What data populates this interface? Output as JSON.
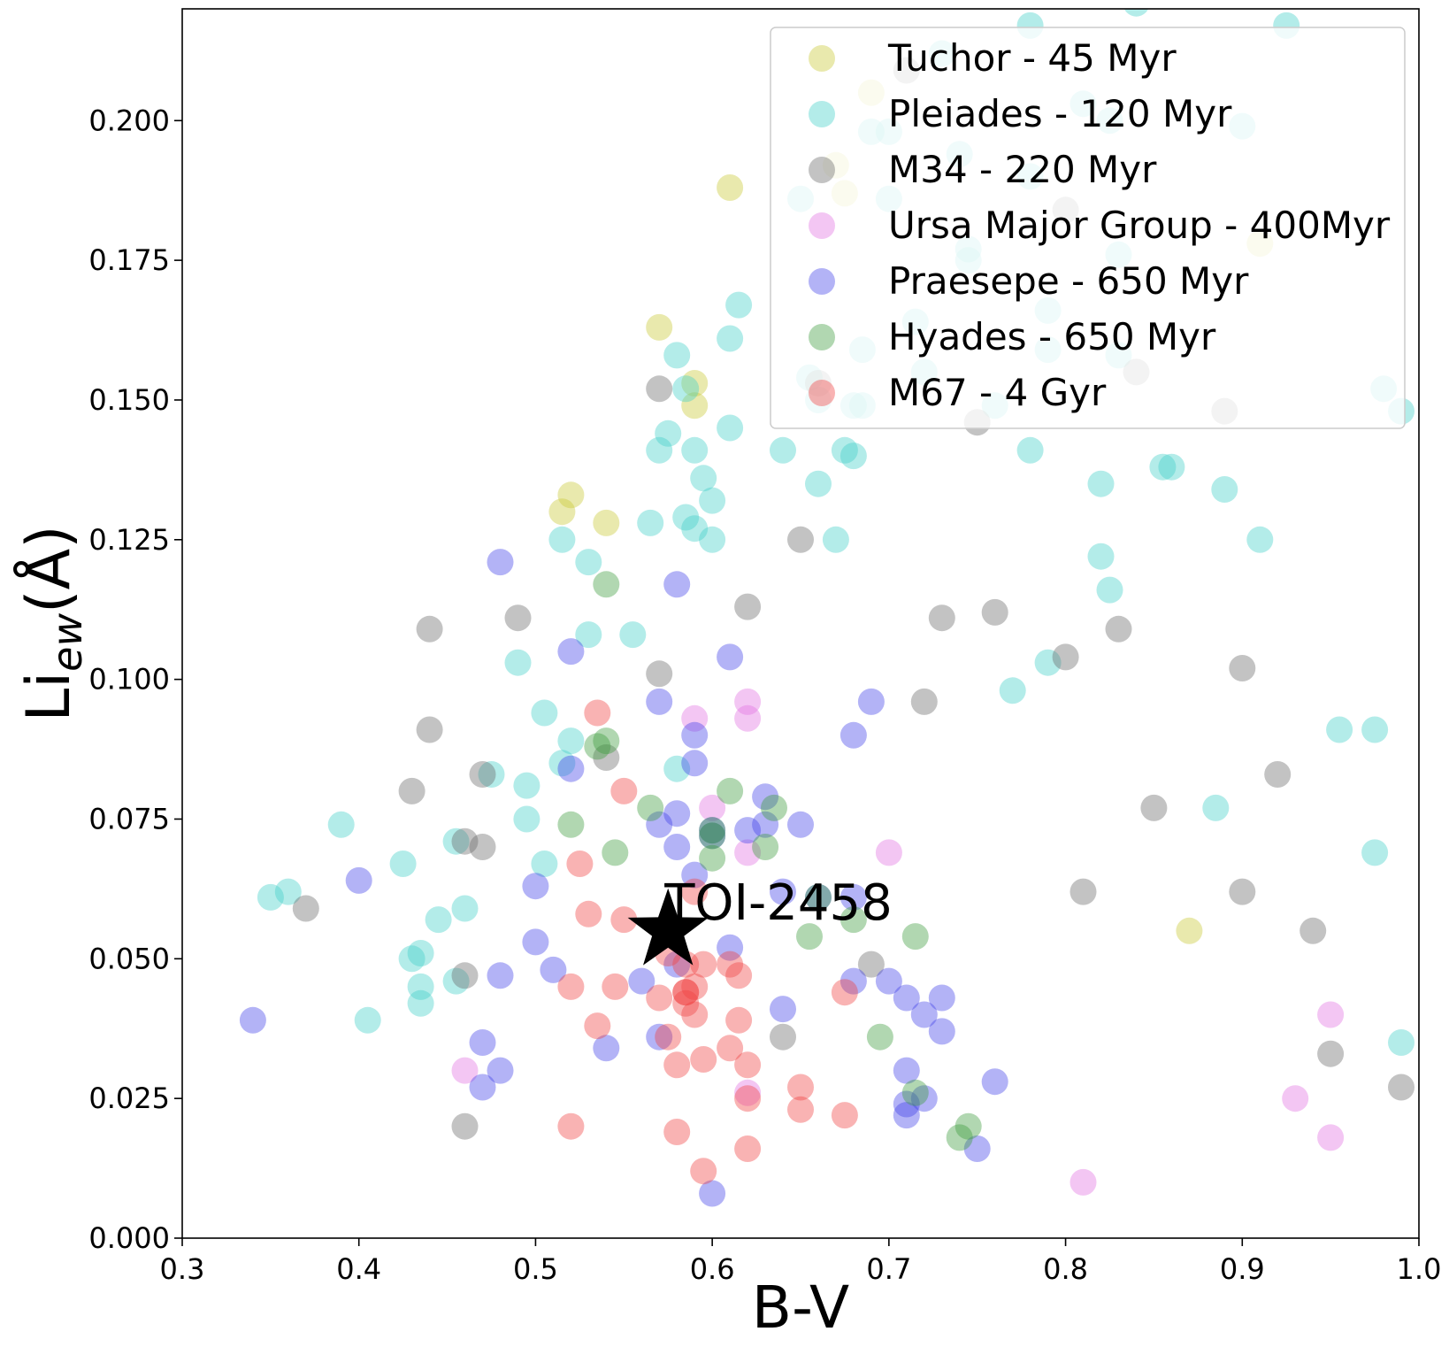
{
  "chart_data": {
    "type": "scatter",
    "title": "",
    "xlabel": "B-V",
    "ylabel_main": "Li",
    "ylabel_sub": "ew",
    "ylabel_unit": "(Å)",
    "xlim": [
      0.3,
      1.0
    ],
    "ylim": [
      0.0,
      0.22
    ],
    "x_ticks": [
      "0.3",
      "0.4",
      "0.5",
      "0.6",
      "0.7",
      "0.8",
      "0.9",
      "1.0"
    ],
    "y_ticks": [
      "0.000",
      "0.025",
      "0.050",
      "0.075",
      "0.100",
      "0.125",
      "0.150",
      "0.175",
      "0.200"
    ],
    "grid": false,
    "legend_position": "top-right",
    "annotation": {
      "text": "TOI-2458",
      "x": 0.575,
      "y": 0.055,
      "marker": "star",
      "color": "#000000"
    },
    "series": [
      {
        "name": "Tuchor - 45 Myr",
        "color": "#c8c832",
        "points": [
          [
            0.515,
            0.13
          ],
          [
            0.52,
            0.133
          ],
          [
            0.54,
            0.128
          ],
          [
            0.57,
            0.163
          ],
          [
            0.59,
            0.153
          ],
          [
            0.59,
            0.149
          ],
          [
            0.61,
            0.188
          ],
          [
            0.67,
            0.192
          ],
          [
            0.675,
            0.187
          ],
          [
            0.69,
            0.205
          ],
          [
            0.87,
            0.055
          ],
          [
            0.91,
            0.178
          ]
        ]
      },
      {
        "name": "Pleiades - 120 Myr",
        "color": "#40d0c8",
        "points": [
          [
            0.35,
            0.061
          ],
          [
            0.36,
            0.062
          ],
          [
            0.39,
            0.074
          ],
          [
            0.405,
            0.039
          ],
          [
            0.425,
            0.067
          ],
          [
            0.43,
            0.05
          ],
          [
            0.435,
            0.045
          ],
          [
            0.435,
            0.051
          ],
          [
            0.435,
            0.042
          ],
          [
            0.445,
            0.057
          ],
          [
            0.455,
            0.046
          ],
          [
            0.455,
            0.071
          ],
          [
            0.46,
            0.059
          ],
          [
            0.475,
            0.083
          ],
          [
            0.49,
            0.103
          ],
          [
            0.495,
            0.081
          ],
          [
            0.495,
            0.075
          ],
          [
            0.505,
            0.094
          ],
          [
            0.505,
            0.067
          ],
          [
            0.515,
            0.085
          ],
          [
            0.52,
            0.089
          ],
          [
            0.515,
            0.125
          ],
          [
            0.53,
            0.121
          ],
          [
            0.53,
            0.108
          ],
          [
            0.555,
            0.108
          ],
          [
            0.565,
            0.128
          ],
          [
            0.57,
            0.141
          ],
          [
            0.575,
            0.144
          ],
          [
            0.58,
            0.158
          ],
          [
            0.58,
            0.084
          ],
          [
            0.585,
            0.129
          ],
          [
            0.585,
            0.152
          ],
          [
            0.59,
            0.141
          ],
          [
            0.59,
            0.127
          ],
          [
            0.595,
            0.136
          ],
          [
            0.6,
            0.125
          ],
          [
            0.6,
            0.132
          ],
          [
            0.61,
            0.161
          ],
          [
            0.61,
            0.145
          ],
          [
            0.615,
            0.167
          ],
          [
            0.64,
            0.141
          ],
          [
            0.65,
            0.186
          ],
          [
            0.655,
            0.154
          ],
          [
            0.66,
            0.135
          ],
          [
            0.66,
            0.15
          ],
          [
            0.67,
            0.125
          ],
          [
            0.675,
            0.141
          ],
          [
            0.68,
            0.14
          ],
          [
            0.68,
            0.149
          ],
          [
            0.685,
            0.159
          ],
          [
            0.685,
            0.149
          ],
          [
            0.69,
            0.198
          ],
          [
            0.7,
            0.186
          ],
          [
            0.7,
            0.198
          ],
          [
            0.715,
            0.164
          ],
          [
            0.72,
            0.155
          ],
          [
            0.73,
            0.212
          ],
          [
            0.74,
            0.194
          ],
          [
            0.745,
            0.177
          ],
          [
            0.745,
            0.175
          ],
          [
            0.76,
            0.149
          ],
          [
            0.77,
            0.098
          ],
          [
            0.78,
            0.141
          ],
          [
            0.78,
            0.19
          ],
          [
            0.78,
            0.217
          ],
          [
            0.79,
            0.166
          ],
          [
            0.79,
            0.159
          ],
          [
            0.79,
            0.103
          ],
          [
            0.81,
            0.203
          ],
          [
            0.82,
            0.135
          ],
          [
            0.82,
            0.122
          ],
          [
            0.825,
            0.116
          ],
          [
            0.825,
            0.2
          ],
          [
            0.83,
            0.176
          ],
          [
            0.83,
            0.158
          ],
          [
            0.84,
            0.221
          ],
          [
            0.855,
            0.138
          ],
          [
            0.86,
            0.138
          ],
          [
            0.885,
            0.077
          ],
          [
            0.89,
            0.134
          ],
          [
            0.9,
            0.199
          ],
          [
            0.91,
            0.125
          ],
          [
            0.925,
            0.217
          ],
          [
            0.955,
            0.091
          ],
          [
            0.975,
            0.091
          ],
          [
            0.975,
            0.069
          ],
          [
            0.98,
            0.152
          ],
          [
            0.99,
            0.148
          ],
          [
            0.99,
            0.035
          ]
        ]
      },
      {
        "name": "M34 - 220 Myr",
        "color": "#6a6a6a",
        "points": [
          [
            0.37,
            0.059
          ],
          [
            0.43,
            0.08
          ],
          [
            0.44,
            0.109
          ],
          [
            0.44,
            0.091
          ],
          [
            0.46,
            0.071
          ],
          [
            0.46,
            0.047
          ],
          [
            0.46,
            0.02
          ],
          [
            0.47,
            0.07
          ],
          [
            0.47,
            0.083
          ],
          [
            0.49,
            0.111
          ],
          [
            0.54,
            0.086
          ],
          [
            0.57,
            0.152
          ],
          [
            0.57,
            0.101
          ],
          [
            0.62,
            0.113
          ],
          [
            0.64,
            0.036
          ],
          [
            0.65,
            0.125
          ],
          [
            0.66,
            0.153
          ],
          [
            0.69,
            0.049
          ],
          [
            0.71,
            0.209
          ],
          [
            0.72,
            0.096
          ],
          [
            0.73,
            0.111
          ],
          [
            0.75,
            0.146
          ],
          [
            0.76,
            0.112
          ],
          [
            0.8,
            0.104
          ],
          [
            0.8,
            0.184
          ],
          [
            0.81,
            0.062
          ],
          [
            0.83,
            0.109
          ],
          [
            0.84,
            0.155
          ],
          [
            0.85,
            0.077
          ],
          [
            0.89,
            0.148
          ],
          [
            0.9,
            0.102
          ],
          [
            0.9,
            0.062
          ],
          [
            0.92,
            0.083
          ],
          [
            0.94,
            0.055
          ],
          [
            0.95,
            0.033
          ],
          [
            0.99,
            0.027
          ]
        ]
      },
      {
        "name": "Ursa Major Group - 400Myr",
        "color": "#e070e0",
        "points": [
          [
            0.46,
            0.03
          ],
          [
            0.59,
            0.093
          ],
          [
            0.6,
            0.077
          ],
          [
            0.62,
            0.096
          ],
          [
            0.62,
            0.093
          ],
          [
            0.62,
            0.069
          ],
          [
            0.62,
            0.026
          ],
          [
            0.7,
            0.069
          ],
          [
            0.81,
            0.01
          ],
          [
            0.93,
            0.025
          ],
          [
            0.95,
            0.04
          ],
          [
            0.95,
            0.018
          ]
        ]
      },
      {
        "name": "Praesepe - 650 Myr",
        "color": "#4040e8",
        "points": [
          [
            0.34,
            0.039
          ],
          [
            0.4,
            0.064
          ],
          [
            0.47,
            0.035
          ],
          [
            0.47,
            0.027
          ],
          [
            0.48,
            0.121
          ],
          [
            0.48,
            0.047
          ],
          [
            0.48,
            0.03
          ],
          [
            0.5,
            0.063
          ],
          [
            0.5,
            0.053
          ],
          [
            0.51,
            0.048
          ],
          [
            0.52,
            0.105
          ],
          [
            0.52,
            0.084
          ],
          [
            0.54,
            0.034
          ],
          [
            0.56,
            0.046
          ],
          [
            0.57,
            0.096
          ],
          [
            0.57,
            0.074
          ],
          [
            0.57,
            0.036
          ],
          [
            0.58,
            0.117
          ],
          [
            0.58,
            0.076
          ],
          [
            0.58,
            0.07
          ],
          [
            0.58,
            0.049
          ],
          [
            0.59,
            0.09
          ],
          [
            0.59,
            0.085
          ],
          [
            0.59,
            0.065
          ],
          [
            0.6,
            0.072
          ],
          [
            0.6,
            0.073
          ],
          [
            0.6,
            0.008
          ],
          [
            0.61,
            0.104
          ],
          [
            0.61,
            0.052
          ],
          [
            0.62,
            0.073
          ],
          [
            0.63,
            0.079
          ],
          [
            0.63,
            0.074
          ],
          [
            0.64,
            0.062
          ],
          [
            0.64,
            0.041
          ],
          [
            0.65,
            0.074
          ],
          [
            0.66,
            0.061
          ],
          [
            0.68,
            0.09
          ],
          [
            0.68,
            0.061
          ],
          [
            0.68,
            0.046
          ],
          [
            0.69,
            0.096
          ],
          [
            0.7,
            0.046
          ],
          [
            0.71,
            0.043
          ],
          [
            0.71,
            0.03
          ],
          [
            0.71,
            0.024
          ],
          [
            0.71,
            0.022
          ],
          [
            0.72,
            0.04
          ],
          [
            0.72,
            0.025
          ],
          [
            0.73,
            0.043
          ],
          [
            0.73,
            0.037
          ],
          [
            0.75,
            0.016
          ],
          [
            0.76,
            0.028
          ]
        ]
      },
      {
        "name": "Hyades - 650 Myr",
        "color": "#3c9a3c",
        "points": [
          [
            0.52,
            0.074
          ],
          [
            0.535,
            0.088
          ],
          [
            0.54,
            0.089
          ],
          [
            0.54,
            0.117
          ],
          [
            0.545,
            0.069
          ],
          [
            0.565,
            0.077
          ],
          [
            0.6,
            0.073
          ],
          [
            0.6,
            0.068
          ],
          [
            0.6,
            0.072
          ],
          [
            0.61,
            0.08
          ],
          [
            0.63,
            0.07
          ],
          [
            0.635,
            0.077
          ],
          [
            0.655,
            0.054
          ],
          [
            0.66,
            0.061
          ],
          [
            0.68,
            0.057
          ],
          [
            0.695,
            0.036
          ],
          [
            0.715,
            0.054
          ],
          [
            0.715,
            0.026
          ],
          [
            0.74,
            0.018
          ],
          [
            0.745,
            0.02
          ]
        ]
      },
      {
        "name": "M67 - 4 Gyr",
        "color": "#f04040",
        "points": [
          [
            0.52,
            0.045
          ],
          [
            0.52,
            0.02
          ],
          [
            0.525,
            0.067
          ],
          [
            0.53,
            0.058
          ],
          [
            0.535,
            0.094
          ],
          [
            0.535,
            0.038
          ],
          [
            0.545,
            0.045
          ],
          [
            0.55,
            0.08
          ],
          [
            0.55,
            0.057
          ],
          [
            0.57,
            0.043
          ],
          [
            0.575,
            0.051
          ],
          [
            0.575,
            0.036
          ],
          [
            0.58,
            0.031
          ],
          [
            0.58,
            0.019
          ],
          [
            0.585,
            0.049
          ],
          [
            0.585,
            0.044
          ],
          [
            0.585,
            0.042
          ],
          [
            0.585,
            0.044
          ],
          [
            0.59,
            0.045
          ],
          [
            0.59,
            0.04
          ],
          [
            0.59,
            0.062
          ],
          [
            0.595,
            0.049
          ],
          [
            0.595,
            0.032
          ],
          [
            0.595,
            0.012
          ],
          [
            0.61,
            0.049
          ],
          [
            0.61,
            0.034
          ],
          [
            0.615,
            0.047
          ],
          [
            0.615,
            0.039
          ],
          [
            0.62,
            0.025
          ],
          [
            0.62,
            0.016
          ],
          [
            0.62,
            0.031
          ],
          [
            0.65,
            0.027
          ],
          [
            0.65,
            0.023
          ],
          [
            0.675,
            0.044
          ],
          [
            0.675,
            0.022
          ]
        ]
      }
    ]
  }
}
